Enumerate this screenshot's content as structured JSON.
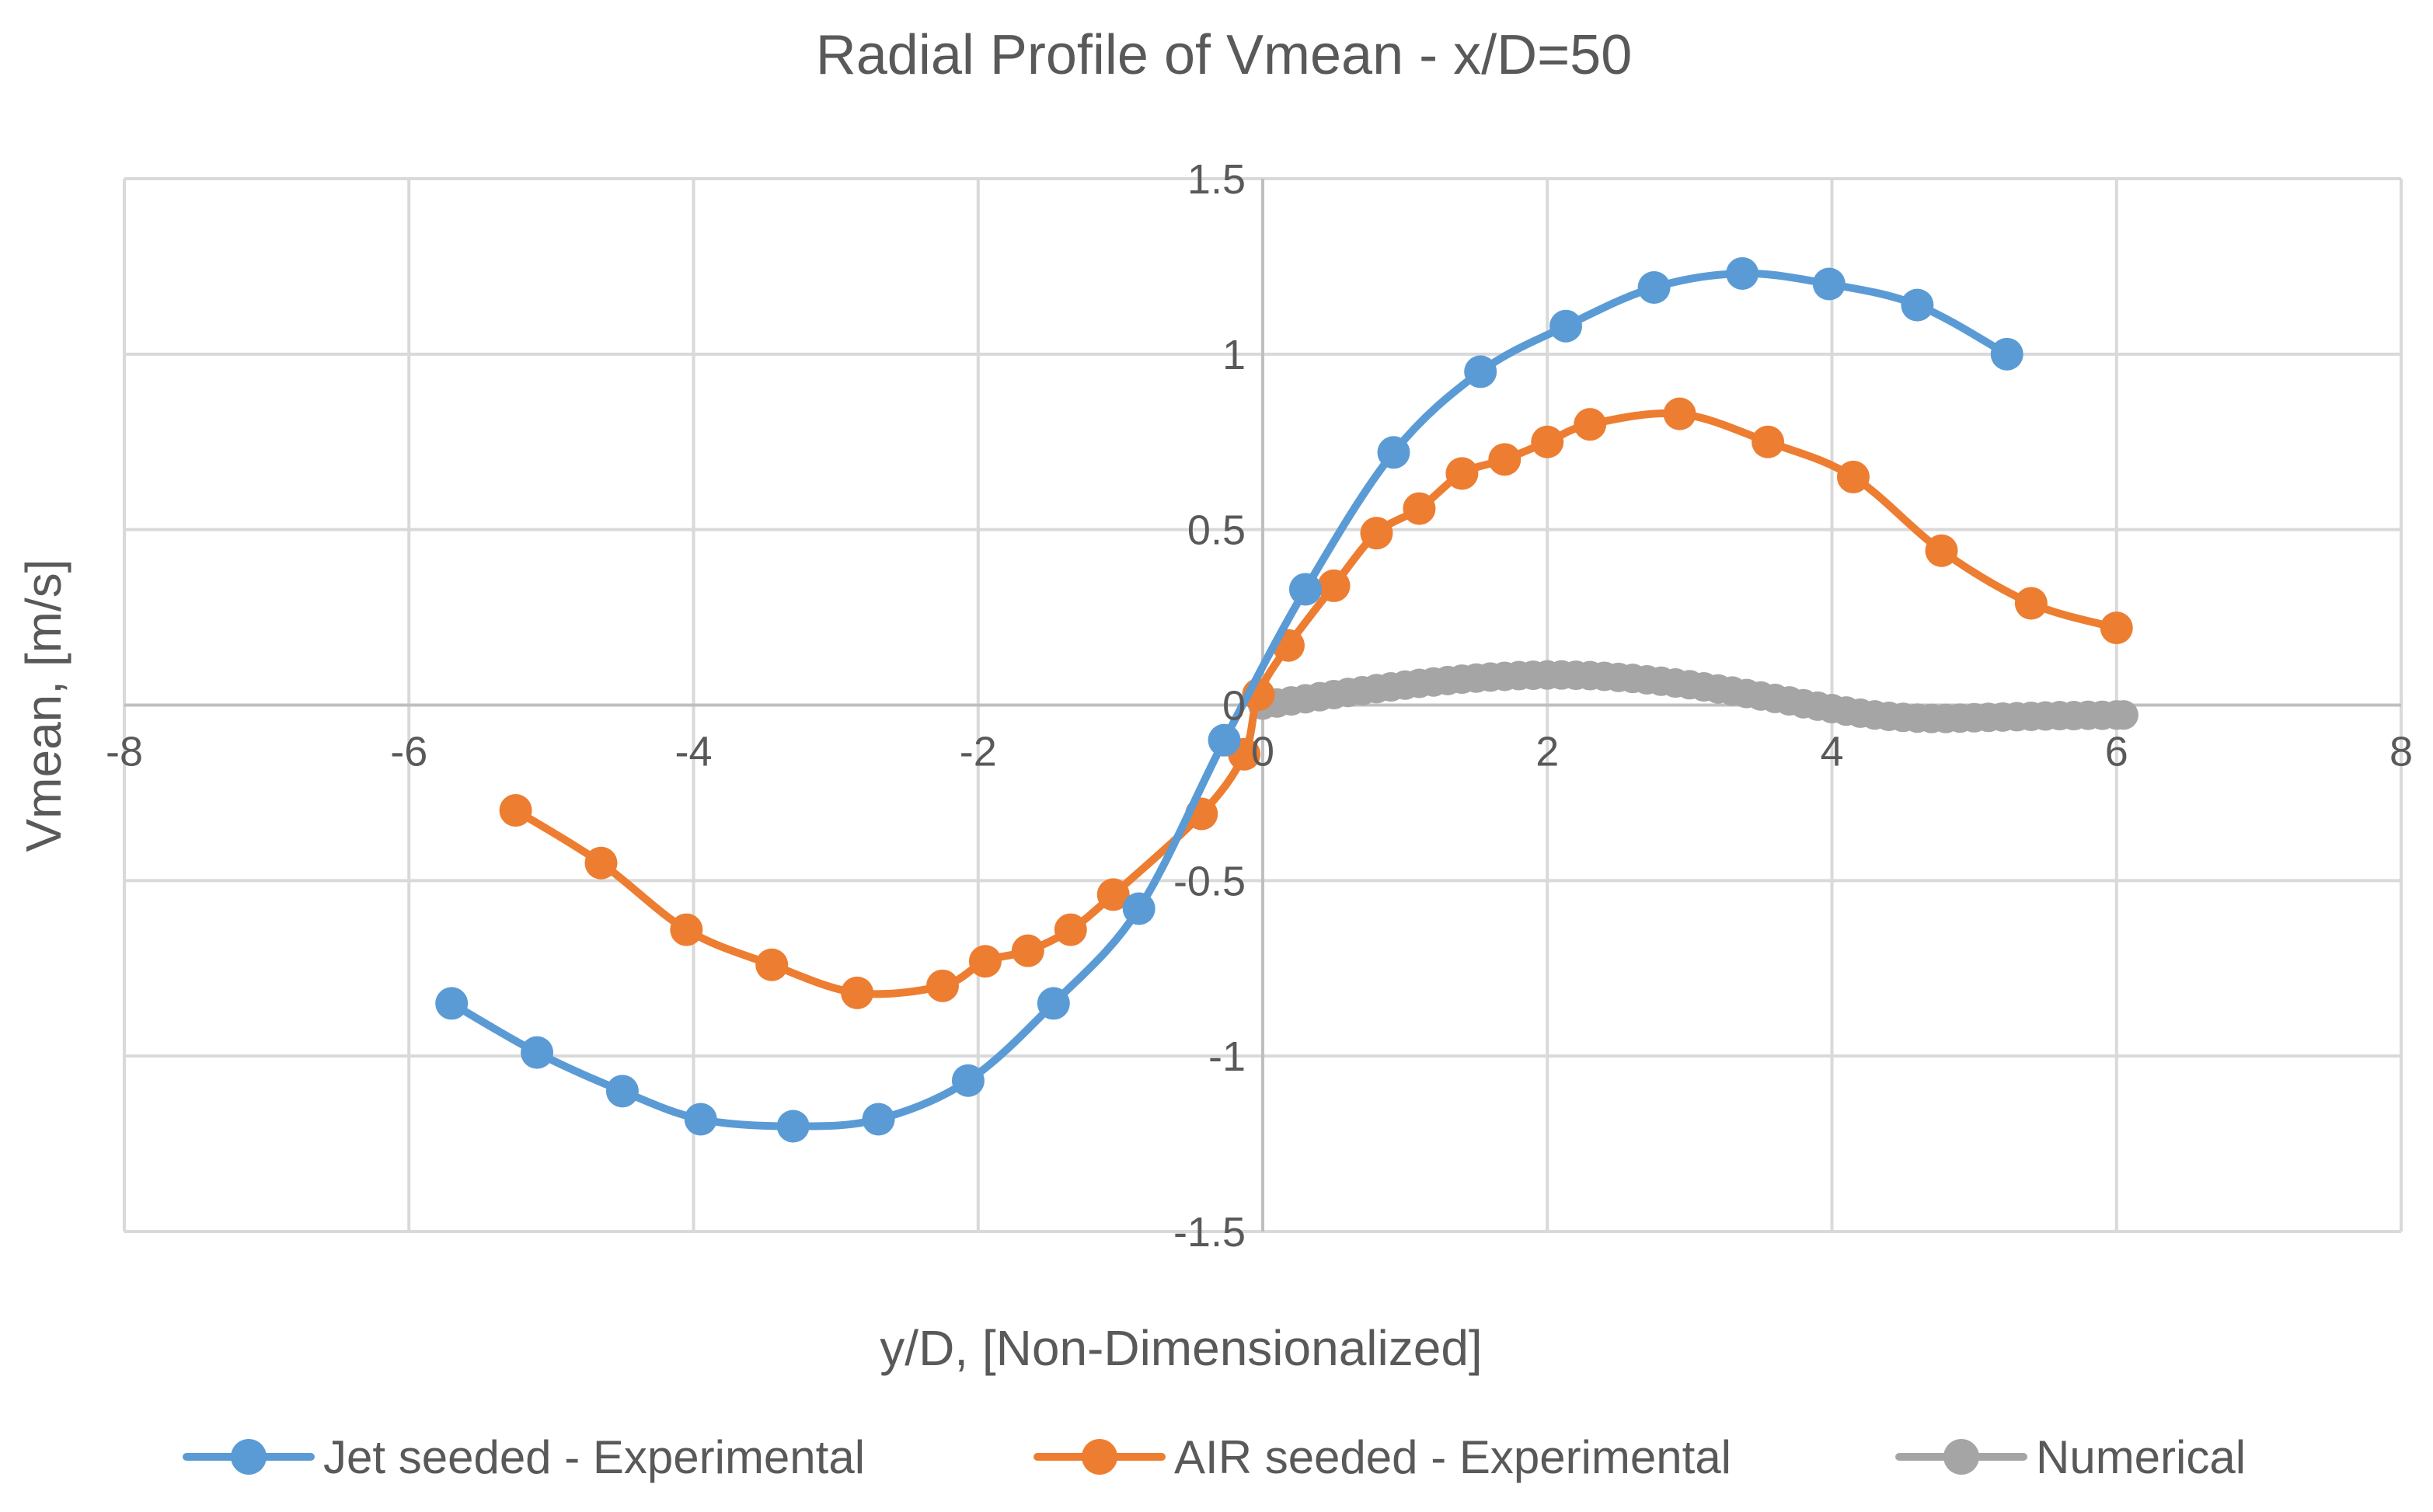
{
  "chart_data": {
    "type": "scatter",
    "title": "Radial Profile of Vmean - x/D=50",
    "xlabel": "y/D, [Non-Dimensionalized]",
    "ylabel": "Vmean, [m/s]",
    "xlim": [
      -8,
      8
    ],
    "ylim": [
      -1.5,
      1.5
    ],
    "xticks": [
      -8,
      -6,
      -4,
      -2,
      0,
      2,
      4,
      6,
      8
    ],
    "yticks": [
      -1.5,
      -1,
      -0.5,
      0,
      0.5,
      1,
      1.5
    ],
    "xtick_labels": [
      "-8",
      "-6",
      "-4",
      "-2",
      "0",
      "2",
      "4",
      "6",
      "8"
    ],
    "ytick_labels": [
      "-1.5",
      "-1",
      "-0.5",
      "0",
      "0.5",
      "1",
      "1.5"
    ],
    "grid": true,
    "legend_position": "bottom",
    "series": [
      {
        "name": "Jet seeded - Experimental",
        "color": "#5b9bd5",
        "x": [
          -5.7,
          -5.1,
          -4.5,
          -3.95,
          -3.3,
          -2.7,
          -2.07,
          -1.47,
          -0.87,
          -0.27,
          0.3,
          0.92,
          1.53,
          2.13,
          2.75,
          3.37,
          3.98,
          4.6,
          5.23
        ],
        "y": [
          -0.85,
          -0.99,
          -1.1,
          -1.18,
          -1.2,
          -1.18,
          -1.07,
          -0.85,
          -0.58,
          -0.1,
          0.33,
          0.72,
          0.95,
          1.08,
          1.19,
          1.23,
          1.2,
          1.14,
          1.0
        ]
      },
      {
        "name": "AIR seeded - Experimental",
        "color": "#ed7d31",
        "x": [
          -5.25,
          -4.65,
          -4.05,
          -3.45,
          -2.85,
          -2.25,
          -1.95,
          -1.65,
          -1.35,
          -1.05,
          -0.43,
          -0.13,
          -0.03,
          0.18,
          0.5,
          0.8,
          1.1,
          1.4,
          1.7,
          2.0,
          2.3,
          2.93,
          3.55,
          4.15,
          4.77,
          5.4,
          6.0
        ],
        "y": [
          -0.3,
          -0.45,
          -0.64,
          -0.74,
          -0.82,
          -0.8,
          -0.73,
          -0.7,
          -0.64,
          -0.54,
          -0.31,
          -0.14,
          0.03,
          0.17,
          0.34,
          0.49,
          0.56,
          0.66,
          0.7,
          0.75,
          0.8,
          0.83,
          0.75,
          0.65,
          0.44,
          0.29,
          0.22
        ]
      },
      {
        "name": "Numerical",
        "color": "#a5a5a5",
        "x": [
          0.0,
          0.1,
          0.2,
          0.3,
          0.4,
          0.5,
          0.6,
          0.7,
          0.8,
          0.9,
          1.0,
          1.1,
          1.2,
          1.3,
          1.4,
          1.5,
          1.6,
          1.7,
          1.8,
          1.9,
          2.0,
          2.1,
          2.2,
          2.3,
          2.4,
          2.5,
          2.6,
          2.7,
          2.8,
          2.9,
          3.0,
          3.1,
          3.2,
          3.3,
          3.4,
          3.5,
          3.6,
          3.7,
          3.8,
          3.9,
          4.0,
          4.1,
          4.2,
          4.3,
          4.4,
          4.5,
          4.6,
          4.7,
          4.8,
          4.9,
          5.0,
          5.1,
          5.2,
          5.3,
          5.4,
          5.5,
          5.6,
          5.7,
          5.8,
          5.9,
          6.0,
          6.05
        ],
        "y": [
          0.0,
          0.006,
          0.012,
          0.018,
          0.024,
          0.03,
          0.036,
          0.041,
          0.047,
          0.052,
          0.057,
          0.062,
          0.066,
          0.07,
          0.074,
          0.077,
          0.08,
          0.082,
          0.084,
          0.085,
          0.086,
          0.086,
          0.085,
          0.084,
          0.082,
          0.079,
          0.076,
          0.072,
          0.068,
          0.063,
          0.058,
          0.052,
          0.046,
          0.04,
          0.033,
          0.026,
          0.019,
          0.012,
          0.004,
          -0.003,
          -0.01,
          -0.017,
          -0.023,
          -0.028,
          -0.032,
          -0.035,
          -0.037,
          -0.038,
          -0.038,
          -0.037,
          -0.036,
          -0.035,
          -0.034,
          -0.033,
          -0.032,
          -0.031,
          -0.03,
          -0.03,
          -0.029,
          -0.029,
          -0.028,
          -0.028
        ]
      }
    ]
  }
}
